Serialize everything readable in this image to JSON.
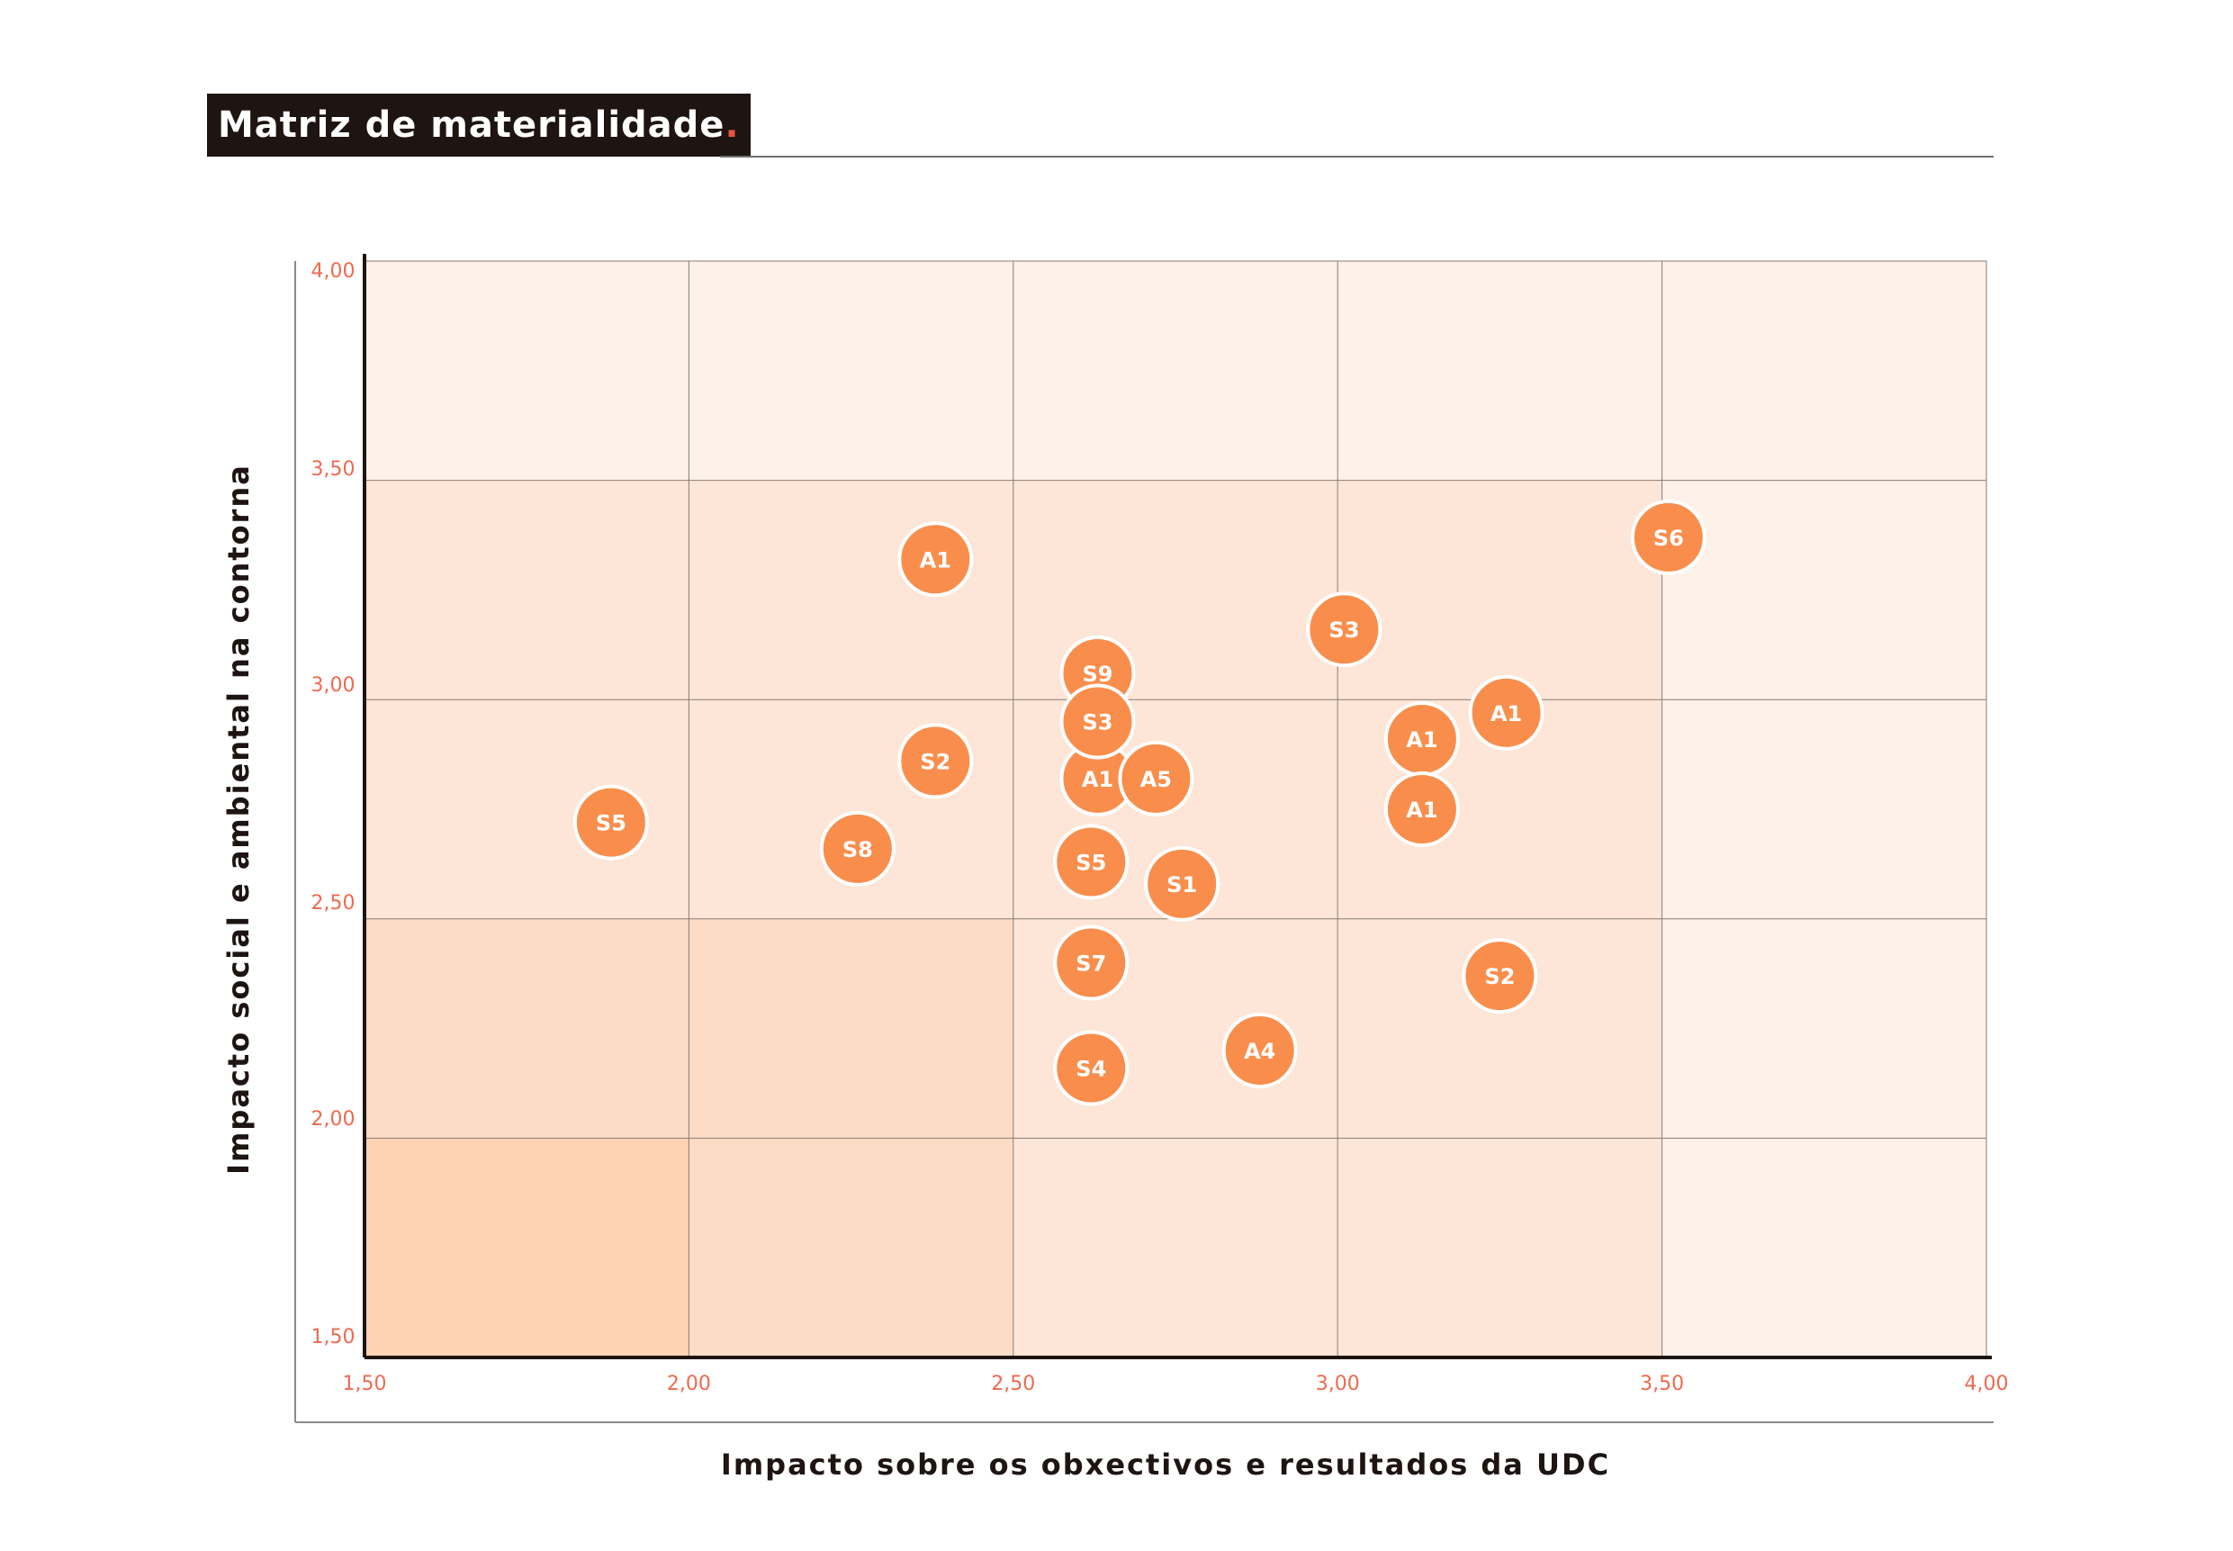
{
  "title": "Matriz de materialidade",
  "title_dot": ".",
  "colors": {
    "title_bg": "#1e1412",
    "accent": "#e8533a",
    "bubble": "#f98e4c",
    "bubble_stroke": "#ffffff",
    "tick": "#ef6a50",
    "grid": "#8a7a72",
    "axis": "#1e1412",
    "band_darkest": "#fdd2b5",
    "band_dark": "#fddcc6",
    "band_mid": "#fde6d7",
    "band_light": "#fdf1ea"
  },
  "chart_data": {
    "type": "scatter",
    "title": "Matriz de materialidade",
    "xlabel": "Impacto sobre os obxectivos e resultados da UDC",
    "ylabel": "Impacto social e ambiental na contorna",
    "xlim": [
      1.5,
      4.0
    ],
    "ylim": [
      1.5,
      4.0
    ],
    "x_ticks": [
      "1,50",
      "2,00",
      "2,50",
      "3,00",
      "3,50",
      "4,00"
    ],
    "y_ticks": [
      "1,50",
      "2,00",
      "2,50",
      "3,00",
      "3,50",
      "4,00"
    ],
    "grid": true,
    "points": [
      {
        "label": "S5",
        "x": 1.88,
        "y": 2.72
      },
      {
        "label": "S8",
        "x": 2.26,
        "y": 2.66
      },
      {
        "label": "A1",
        "x": 2.38,
        "y": 3.32
      },
      {
        "label": "S2",
        "x": 2.38,
        "y": 2.86
      },
      {
        "label": "S9",
        "x": 2.63,
        "y": 3.06
      },
      {
        "label": "A1",
        "x": 2.63,
        "y": 2.82
      },
      {
        "label": "S3",
        "x": 2.63,
        "y": 2.95
      },
      {
        "label": "A5",
        "x": 2.72,
        "y": 2.82
      },
      {
        "label": "S5",
        "x": 2.62,
        "y": 2.63
      },
      {
        "label": "S1",
        "x": 2.76,
        "y": 2.58
      },
      {
        "label": "S7",
        "x": 2.62,
        "y": 2.4
      },
      {
        "label": "S4",
        "x": 2.62,
        "y": 2.16
      },
      {
        "label": "A4",
        "x": 2.88,
        "y": 2.2
      },
      {
        "label": "S3",
        "x": 3.01,
        "y": 3.16
      },
      {
        "label": "A1",
        "x": 3.13,
        "y": 2.91
      },
      {
        "label": "A1",
        "x": 3.13,
        "y": 2.75
      },
      {
        "label": "A1",
        "x": 3.26,
        "y": 2.97
      },
      {
        "label": "S2",
        "x": 3.25,
        "y": 2.37
      },
      {
        "label": "S6",
        "x": 3.51,
        "y": 3.37
      }
    ]
  }
}
